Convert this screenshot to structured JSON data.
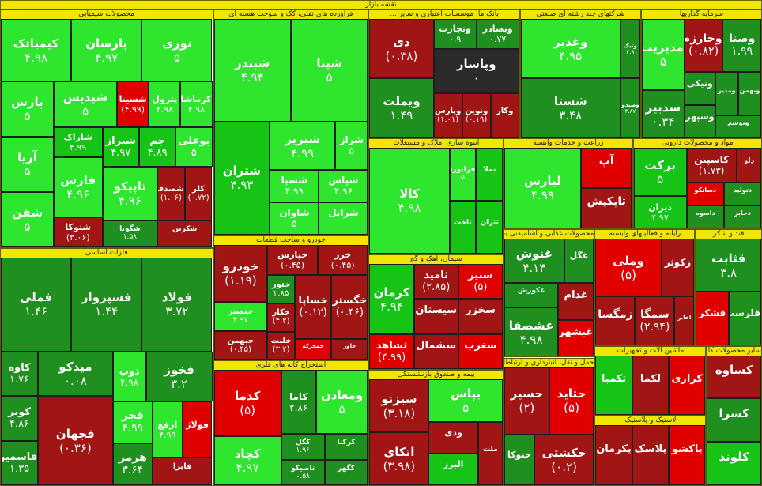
{
  "chart_data": {
    "type": "treemap",
    "title": "نقشه بازار",
    "colors": {
      "up": "#16c416",
      "up_bright": "#2ee62e",
      "mid": "#1f8f1f",
      "down": "#a11515",
      "down_bright": "#e00000",
      "neutral": "#2a2a2a",
      "banner": "#f2e600"
    },
    "sectors": [
      {
        "name": "محصولات شیمیایی",
        "weight": 13,
        "tiles": [
          {
            "s": "کیمیاتک",
            "v": "۴.۹۸",
            "c": "up_bright",
            "w": 3
          },
          {
            "s": "پارسان",
            "v": "۴.۹۷",
            "c": "up_bright",
            "w": 3
          },
          {
            "s": "نوری",
            "v": "۵",
            "c": "up_bright",
            "w": 3
          },
          {
            "s": "پارس",
            "v": "۵",
            "c": "up_bright",
            "w": 2
          },
          {
            "s": "آریا",
            "v": "۵",
            "c": "up_bright",
            "w": 2
          },
          {
            "s": "شفن",
            "v": "۵",
            "c": "up_bright",
            "w": 2
          },
          {
            "s": "شپدیس",
            "v": "۵",
            "c": "up_bright",
            "w": 2
          },
          {
            "s": "شسینا",
            "v": "(۴.۹۹)",
            "c": "down_bright",
            "w": 1
          },
          {
            "s": "پترول",
            "v": "۴.۹۸",
            "c": "up_bright",
            "w": 1
          },
          {
            "s": "کرماشا",
            "v": "۴.۹۸",
            "c": "up_bright",
            "w": 1
          },
          {
            "s": "شاراک",
            "v": "۴.۹۹",
            "c": "up",
            "w": 1
          },
          {
            "s": "فارس",
            "v": "۴.۹۶",
            "c": "up_bright",
            "w": 2
          },
          {
            "s": "شتوکا",
            "v": "(۳.۰۶)",
            "c": "down",
            "w": 1
          },
          {
            "s": "شیراز",
            "v": "۴.۹۷",
            "c": "up",
            "w": 1
          },
          {
            "s": "جم",
            "v": "۴.۸۹",
            "c": "up",
            "w": 1
          },
          {
            "s": "بوعلی",
            "v": "۵",
            "c": "up_bright",
            "w": 1
          },
          {
            "s": "تاپیکو",
            "v": "۴.۹۶",
            "c": "up_bright",
            "w": 2
          },
          {
            "s": "شگویا",
            "v": "۱.۵۸",
            "c": "mid",
            "w": 1
          },
          {
            "s": "شصدف",
            "v": "(۱.۰۶)",
            "c": "down",
            "w": 1
          },
          {
            "s": "کلر",
            "v": "(۰.۷۲)",
            "c": "down",
            "w": 1
          },
          {
            "s": "شکربن",
            "v": "",
            "c": "down",
            "w": 1
          }
        ]
      },
      {
        "name": "فلزات اساسی",
        "weight": 13,
        "tiles": [
          {
            "s": "فملی",
            "v": "۱.۴۶",
            "c": "mid",
            "w": 4
          },
          {
            "s": "فسپزوار",
            "v": "۱.۴۴",
            "c": "mid",
            "w": 4
          },
          {
            "s": "فولاد",
            "v": "۳.۷۲",
            "c": "mid",
            "w": 4
          },
          {
            "s": "کاوه",
            "v": "۱.۷۶",
            "c": "mid",
            "w": 1
          },
          {
            "s": "کویر",
            "v": "۴.۸۶",
            "c": "mid",
            "w": 1
          },
          {
            "s": "فاسمین",
            "v": "۱.۳۵",
            "c": "mid",
            "w": 1
          },
          {
            "s": "میدکو",
            "v": "۰.۰۸",
            "c": "mid",
            "w": 2
          },
          {
            "s": "فجهان",
            "v": "(۰.۳۶)",
            "c": "down",
            "w": 4
          },
          {
            "s": "ذوب",
            "v": "۴.۹۸",
            "c": "up_bright",
            "w": 1
          },
          {
            "s": "فخوز",
            "v": "۳.۲",
            "c": "mid",
            "w": 2
          },
          {
            "s": "فجر",
            "v": "۴.۹۹",
            "c": "up_bright",
            "w": 1
          },
          {
            "s": "هرمز",
            "v": "۳.۶۴",
            "c": "mid",
            "w": 1
          },
          {
            "s": "ارفع",
            "v": "۴.۹۹",
            "c": "up_bright",
            "w": 1
          },
          {
            "s": "فولاژ",
            "v": "",
            "c": "down_bright",
            "w": 1
          },
          {
            "s": "فایرا",
            "v": "",
            "c": "down",
            "w": 1
          }
        ]
      },
      {
        "name": "فرآورده های نفتی، کک و سوخت هسته ای",
        "weight": 9,
        "tiles": [
          {
            "s": "شبندر",
            "v": "۴.۹۴",
            "c": "up_bright",
            "w": 5
          },
          {
            "s": "شپنا",
            "v": "۵",
            "c": "up_bright",
            "w": 5
          },
          {
            "s": "شتران",
            "v": "۴.۹۳",
            "c": "up",
            "w": 4
          },
          {
            "s": "شبریز",
            "v": "۴.۹۹",
            "c": "up_bright",
            "w": 2
          },
          {
            "s": "شراز",
            "v": "۵",
            "c": "up_bright",
            "w": 1
          },
          {
            "s": "شسپا",
            "v": "۴.۹۹",
            "c": "up_bright",
            "w": 1
          },
          {
            "s": "شاوان",
            "v": "۵",
            "c": "up_bright",
            "w": 1
          },
          {
            "s": "شپاس",
            "v": "۴.۹۶",
            "c": "up_bright",
            "w": 1
          },
          {
            "s": "شرانل",
            "v": "",
            "c": "up_bright",
            "w": 1
          }
        ]
      },
      {
        "name": "خودرو و ساخت قطعات",
        "weight": 5,
        "tiles": [
          {
            "s": "خودرو",
            "v": "(۱.۱۹)",
            "c": "down",
            "w": 4
          },
          {
            "s": "خنصیر",
            "v": "۴.۹۷",
            "c": "up_bright",
            "w": 2
          },
          {
            "s": "خبهمن",
            "v": "(۰.۴۵)",
            "c": "down",
            "w": 2
          },
          {
            "s": "خپارس",
            "v": "(۰.۴۵)",
            "c": "down",
            "w": 2
          },
          {
            "s": "خزر",
            "v": "(۰.۴۵)",
            "c": "down",
            "w": 2
          },
          {
            "s": "ختور",
            "v": "۲.۸۵",
            "c": "mid",
            "w": 1
          },
          {
            "s": "خکار",
            "v": "(۴.۲)",
            "c": "down",
            "w": 1
          },
          {
            "s": "خلنت",
            "v": "(۳.۲)",
            "c": "down",
            "w": 1
          },
          {
            "s": "خساپا",
            "v": "(۰.۱۲)",
            "c": "down",
            "w": 3
          },
          {
            "s": "خگستر",
            "v": "(۰.۴۶)",
            "c": "down",
            "w": 3
          },
          {
            "s": "خمحرکه",
            "v": "",
            "c": "down_bright",
            "w": 1
          },
          {
            "s": "خاور",
            "v": "",
            "c": "down",
            "w": 1
          }
        ]
      },
      {
        "name": "استخراج کانه های فلزی",
        "weight": 5,
        "tiles": [
          {
            "s": "کدما",
            "v": "(۵)",
            "c": "down_bright",
            "w": 4
          },
          {
            "s": "کچاد",
            "v": "۴.۹۷",
            "c": "up_bright",
            "w": 3
          },
          {
            "s": "کاما",
            "v": "۲.۸۶",
            "c": "mid",
            "w": 2
          },
          {
            "s": "ومعادن",
            "v": "۵",
            "c": "up_bright",
            "w": 3
          },
          {
            "s": "کگل",
            "v": "۱.۹۶",
            "c": "mid",
            "w": 1
          },
          {
            "s": "تاصیکو",
            "v": "۰.۵۸",
            "c": "mid",
            "w": 1
          },
          {
            "s": "کرکبا",
            "v": "",
            "c": "mid",
            "w": 1
          },
          {
            "s": "کگهر",
            "v": "",
            "c": "mid",
            "w": 1
          }
        ]
      },
      {
        "name": "بانک ها، موسسات اعتباری و سایر ...",
        "weight": 5,
        "tiles": [
          {
            "s": "دی",
            "v": "(۰.۳۸)",
            "c": "down",
            "w": 3
          },
          {
            "s": "ویملت",
            "v": "۱.۴۹",
            "c": "mid",
            "w": 3
          },
          {
            "s": "وتجارت",
            "v": "۰.۹",
            "c": "mid",
            "w": 1
          },
          {
            "s": "وبصادر",
            "v": "۰.۷۷",
            "c": "mid",
            "w": 1
          },
          {
            "s": "وپاسار",
            "v": "۰",
            "c": "neutral",
            "w": 3
          },
          {
            "s": "وپارس",
            "v": "(۱.۰۱)",
            "c": "down",
            "w": 1
          },
          {
            "s": "ونوین",
            "v": "(۰.۱۹)",
            "c": "down",
            "w": 1
          },
          {
            "s": "وکار",
            "v": "",
            "c": "down",
            "w": 1
          }
        ]
      },
      {
        "name": "شرکتهای چند رشته ای صنعتی",
        "weight": 4,
        "tiles": [
          {
            "s": "وغدیر",
            "v": "۴.۹۵",
            "c": "up_bright",
            "w": 5
          },
          {
            "s": "شستا",
            "v": "۳.۴۸",
            "c": "mid",
            "w": 5
          },
          {
            "s": "ونیک",
            "v": "۴.۹",
            "c": "mid",
            "w": 1
          },
          {
            "s": "وصندوق",
            "v": "۴.۸۷",
            "c": "mid",
            "w": 1
          }
        ]
      },
      {
        "name": "سرمایه گذاریها",
        "weight": 4,
        "tiles": [
          {
            "s": "مدیریت",
            "v": "۵",
            "c": "up_bright",
            "w": 3
          },
          {
            "s": "سدبیر",
            "v": "۰.۳۴",
            "c": "mid",
            "w": 2
          },
          {
            "s": "وخارزم",
            "v": "(۰.۸۲)",
            "c": "down",
            "w": 2
          },
          {
            "s": "وصنا",
            "v": "۱.۹۹",
            "c": "mid",
            "w": 2
          },
          {
            "s": "ونیکی",
            "v": "",
            "c": "mid",
            "w": 1
          },
          {
            "s": "وسپهر",
            "v": "",
            "c": "mid",
            "w": 1
          },
          {
            "s": "ومدیر",
            "v": "",
            "c": "mid",
            "w": 1
          },
          {
            "s": "وبهمن",
            "v": "",
            "c": "mid",
            "w": 1
          },
          {
            "s": "وتوسم",
            "v": "",
            "c": "mid",
            "w": 1
          }
        ]
      },
      {
        "name": "انبوه سازی املاک و مستغلات",
        "weight": 4,
        "tiles": [
          {
            "s": "کالا",
            "v": "۴.۹۸",
            "c": "up_bright",
            "w": 6
          },
          {
            "s": "فرابورس",
            "v": "۵",
            "c": "up_bright",
            "w": 1
          },
          {
            "s": "تملا",
            "v": "",
            "c": "up",
            "w": 1
          },
          {
            "s": "ثاخت",
            "v": "",
            "c": "up",
            "w": 1
          },
          {
            "s": "ثتران",
            "v": "",
            "c": "up",
            "w": 1
          }
        ]
      },
      {
        "name": "سیمان، آهک و گچ",
        "weight": 4,
        "tiles": [
          {
            "s": "کرمان",
            "v": "۴.۹۴",
            "c": "up",
            "w": 2
          },
          {
            "s": "ثشاهد",
            "v": "(۴.۹۹)",
            "c": "down_bright",
            "w": 1
          },
          {
            "s": "ثامید",
            "v": "(۲.۸۵)",
            "c": "down",
            "w": 1
          },
          {
            "s": "سنیر",
            "v": "(۵)",
            "c": "down_bright",
            "w": 1
          },
          {
            "s": "سیستان",
            "v": "",
            "c": "down",
            "w": 1
          },
          {
            "s": "سشمال",
            "v": "",
            "c": "down",
            "w": 1
          },
          {
            "s": "سخزر",
            "v": "",
            "c": "down",
            "w": 1
          },
          {
            "s": "سغرب",
            "v": "",
            "c": "down_bright",
            "w": 1
          }
        ]
      },
      {
        "name": "بیمه و صندوق بازنشستگی",
        "weight": 4,
        "tiles": [
          {
            "s": "سیزنو",
            "v": "(۳.۱۸)",
            "c": "down",
            "w": 2
          },
          {
            "s": "اتکای",
            "v": "(۳.۹۸)",
            "c": "down",
            "w": 2
          },
          {
            "s": "بپاس",
            "v": "۵",
            "c": "up_bright",
            "w": 2
          },
          {
            "s": "ودی",
            "v": "",
            "c": "down",
            "w": 1
          },
          {
            "s": "البرز",
            "v": "",
            "c": "up",
            "w": 1
          },
          {
            "s": "ملت",
            "v": "",
            "c": "down",
            "w": 1
          }
        ]
      },
      {
        "name": "زراعت و خدمات وابسته",
        "weight": 3,
        "tiles": [
          {
            "s": "لیارس",
            "v": "۴.۹۹",
            "c": "up_bright",
            "w": 6
          },
          {
            "s": "آپ",
            "v": "",
            "c": "down_bright",
            "w": 2
          },
          {
            "s": "تاپکیش",
            "v": "",
            "c": "down",
            "w": 2
          }
        ]
      },
      {
        "name": "مواد و محصولات دارویی",
        "weight": 3,
        "tiles": [
          {
            "s": "برکت",
            "v": "۵",
            "c": "up",
            "w": 3
          },
          {
            "s": "دیران",
            "v": "۴.۹۷",
            "c": "up",
            "w": 2
          },
          {
            "s": "کاسپین",
            "v": "(۱.۷۳)",
            "c": "down",
            "w": 2
          },
          {
            "s": "دلر",
            "v": "",
            "c": "down",
            "w": 1
          },
          {
            "s": "دسانکو",
            "v": "",
            "c": "down_bright",
            "w": 1
          },
          {
            "s": "داسوه",
            "v": "",
            "c": "mid",
            "w": 1
          },
          {
            "s": "دتولید",
            "v": "",
            "c": "mid",
            "w": 1
          },
          {
            "s": "دجابر",
            "v": "",
            "c": "mid",
            "w": 1
          }
        ]
      },
      {
        "name": "محصولات غذایی و آشامیدنی بجز ...",
        "weight": 3,
        "tiles": [
          {
            "s": "غنوش",
            "v": "۴.۱۴",
            "c": "mid",
            "w": 2
          },
          {
            "s": "غگل",
            "v": "",
            "c": "mid",
            "w": 1
          },
          {
            "s": "غکورش",
            "v": "",
            "c": "mid",
            "w": 1
          },
          {
            "s": "غشصفا",
            "v": "۴.۹۸",
            "c": "mid",
            "w": 2
          },
          {
            "s": "غدام",
            "v": "",
            "c": "down",
            "w": 1
          },
          {
            "s": "غبشهر",
            "v": "",
            "c": "down_bright",
            "w": 1
          }
        ]
      },
      {
        "name": "حمل و نقل، انبارداری و ارتباطات",
        "weight": 3,
        "tiles": [
          {
            "s": "حسیر",
            "v": "(۲)",
            "c": "down",
            "w": 2
          },
          {
            "s": "حتاید",
            "v": "(۵)",
            "c": "down_bright",
            "w": 2
          },
          {
            "s": "حتوکا",
            "v": "",
            "c": "mid",
            "w": 1
          },
          {
            "s": "حکشتی",
            "v": "(۰.۲)",
            "c": "down",
            "w": 2
          }
        ]
      },
      {
        "name": "رایانه و فعالیتهای وابسته",
        "weight": 3,
        "tiles": [
          {
            "s": "وملی",
            "v": "(۵)",
            "c": "down_bright",
            "w": 4
          },
          {
            "s": "زکوثر",
            "v": "",
            "c": "down",
            "w": 2
          },
          {
            "s": "زمگسا",
            "v": "",
            "c": "down",
            "w": 2
          },
          {
            "s": "سمگا",
            "v": "(۲.۹۴)",
            "c": "down",
            "w": 2
          },
          {
            "s": "اخابر",
            "v": "",
            "c": "down",
            "w": 1
          }
        ]
      },
      {
        "name": "قند و شکر",
        "weight": 2,
        "tiles": [
          {
            "s": "قثابت",
            "v": "۳.۸",
            "c": "mid",
            "w": 2
          },
          {
            "s": "قشکر",
            "v": "",
            "c": "down_bright",
            "w": 1
          },
          {
            "s": "قلرست",
            "v": "",
            "c": "mid",
            "w": 1
          }
        ]
      },
      {
        "name": "ماشین آلات و تجهیزات",
        "weight": 2,
        "tiles": [
          {
            "s": "تکمبا",
            "v": "",
            "c": "up",
            "w": 1
          },
          {
            "s": "لکما",
            "v": "",
            "c": "down",
            "w": 1
          },
          {
            "s": "کرازی",
            "v": "",
            "c": "down_bright",
            "w": 1
          }
        ]
      },
      {
        "name": "لاستیک و پلاستیک",
        "weight": 2,
        "tiles": [
          {
            "s": "پکرمان",
            "v": "",
            "c": "down",
            "w": 1
          },
          {
            "s": "پلاسک",
            "v": "",
            "c": "down",
            "w": 1
          },
          {
            "s": "پاکشو",
            "v": "",
            "c": "down_bright",
            "w": 1
          }
        ]
      },
      {
        "name": "سایر محصولات کانی غیرفلزی",
        "weight": 2,
        "tiles": [
          {
            "s": "کساوه",
            "v": "",
            "c": "down",
            "w": 1
          },
          {
            "s": "کسرا",
            "v": "",
            "c": "mid",
            "w": 1
          },
          {
            "s": "کلوند",
            "v": "",
            "c": "up",
            "w": 1
          }
        ]
      }
    ]
  }
}
